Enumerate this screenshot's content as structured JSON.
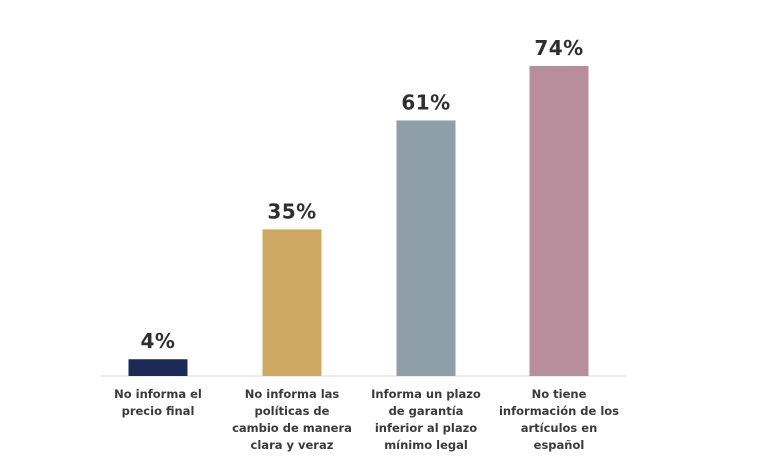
{
  "chart_data": {
    "type": "bar",
    "categories": [
      [
        "No informa el",
        "precio final"
      ],
      [
        "No informa las",
        "políticas de",
        "cambio de manera",
        "clara y veraz"
      ],
      [
        "Informa un plazo",
        "de garantía",
        "inferior al plazo",
        "mínimo legal"
      ],
      [
        "No tiene",
        "información de los",
        "artículos en",
        "español"
      ]
    ],
    "values": [
      4,
      35,
      61,
      74
    ],
    "value_labels": [
      "4%",
      "35%",
      "61%",
      "74%"
    ],
    "colors": [
      "#1c2a55",
      "#cfa963",
      "#8f9faa",
      "#b88e9c"
    ],
    "ylim": [
      0,
      80
    ],
    "grid": false,
    "title": "",
    "xlabel": "",
    "ylabel": ""
  }
}
